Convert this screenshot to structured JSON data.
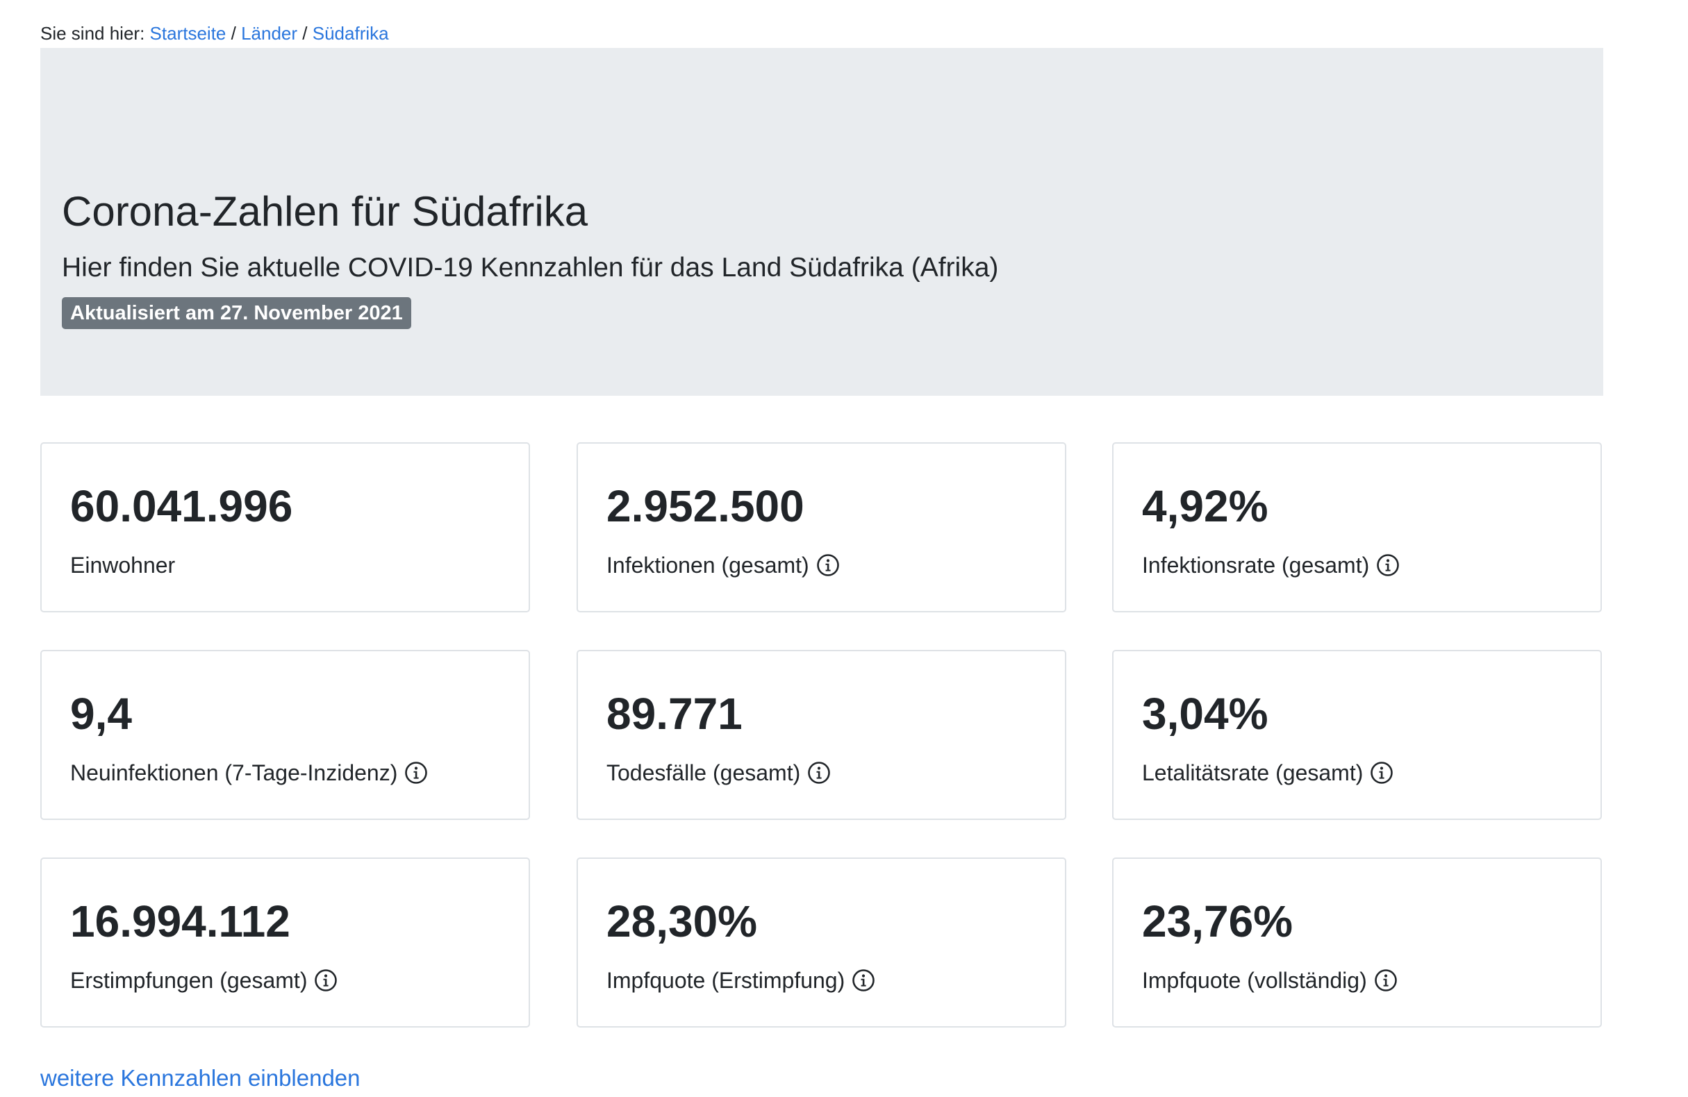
{
  "breadcrumb": {
    "prefix": "Sie sind hier:",
    "items": [
      {
        "label": "Startseite"
      },
      {
        "label": "Länder"
      },
      {
        "label": "Südafrika"
      }
    ],
    "separator": "/"
  },
  "hero": {
    "title": "Corona-Zahlen für Südafrika",
    "subtitle": "Hier finden Sie aktuelle COVID-19 Kennzahlen für das Land Südafrika (Afrika)",
    "badge": "Aktualisiert am 27. November 2021"
  },
  "stats": [
    {
      "value": "60.041.996",
      "label": "Einwohner",
      "info_icon": false
    },
    {
      "value": "2.952.500",
      "label": "Infektionen (gesamt)",
      "info_icon": true
    },
    {
      "value": "4,92%",
      "label": "Infektionsrate (gesamt)",
      "info_icon": true
    },
    {
      "value": "9,4",
      "label": "Neuinfektionen (7-Tage-Inzidenz)",
      "info_icon": true
    },
    {
      "value": "89.771",
      "label": "Todesfälle (gesamt)",
      "info_icon": true
    },
    {
      "value": "3,04%",
      "label": "Letalitätsrate (gesamt)",
      "info_icon": true
    },
    {
      "value": "16.994.112",
      "label": "Erstimpfungen (gesamt)",
      "info_icon": true
    },
    {
      "value": "28,30%",
      "label": "Impfquote (Erstimpfung)",
      "info_icon": true
    },
    {
      "value": "23,76%",
      "label": "Impfquote (vollständig)",
      "info_icon": true
    }
  ],
  "more_link": "weitere Kennzahlen einblenden",
  "colors": {
    "link": "#2a76dd",
    "hero_background": "#e9ecef",
    "badge_background": "#6c757d",
    "card_border": "#dee2e6",
    "text": "#212529"
  },
  "icons": {
    "info": "info-circle-icon"
  }
}
